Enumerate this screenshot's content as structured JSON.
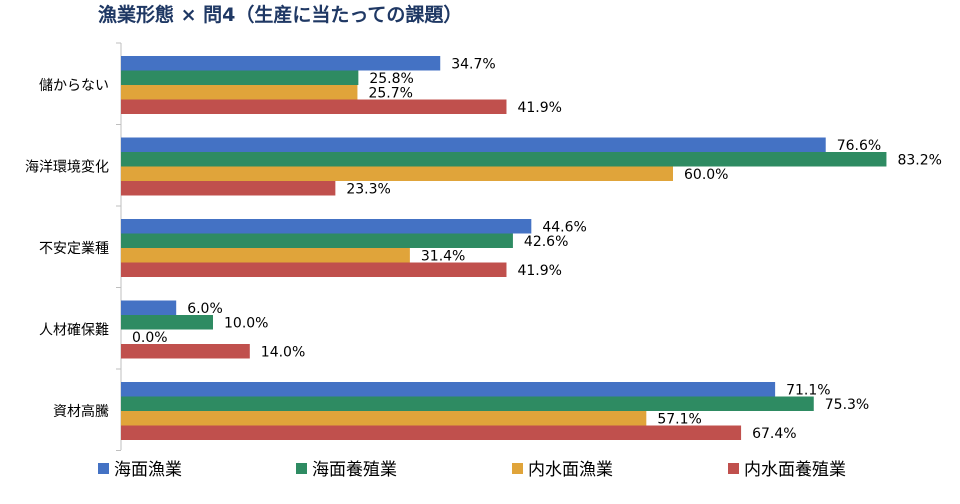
{
  "chart_data": {
    "type": "bar",
    "orientation": "horizontal",
    "title": "漁業形態 × 問4（生産に当たっての課題）",
    "categories": [
      "儲からない",
      "海洋環境変化",
      "不安定業種",
      "人材確保難",
      "資材高騰"
    ],
    "series": [
      {
        "name": "海面漁業",
        "color": "#4472C4",
        "values": [
          34.7,
          76.6,
          44.6,
          6.0,
          71.1
        ]
      },
      {
        "name": "海面養殖業",
        "color": "#2E8B62",
        "values": [
          25.8,
          83.2,
          42.6,
          10.0,
          75.3
        ]
      },
      {
        "name": "内水面漁業",
        "color": "#E0A43A",
        "values": [
          25.7,
          60.0,
          31.4,
          0.0,
          57.1
        ]
      },
      {
        "name": "内水面養殖業",
        "color": "#C0504D",
        "values": [
          41.9,
          23.3,
          41.9,
          14.0,
          67.4
        ]
      }
    ],
    "xlim": [
      0,
      100
    ],
    "value_format": "percent_1dp",
    "legend_position": "bottom",
    "grid": false
  }
}
